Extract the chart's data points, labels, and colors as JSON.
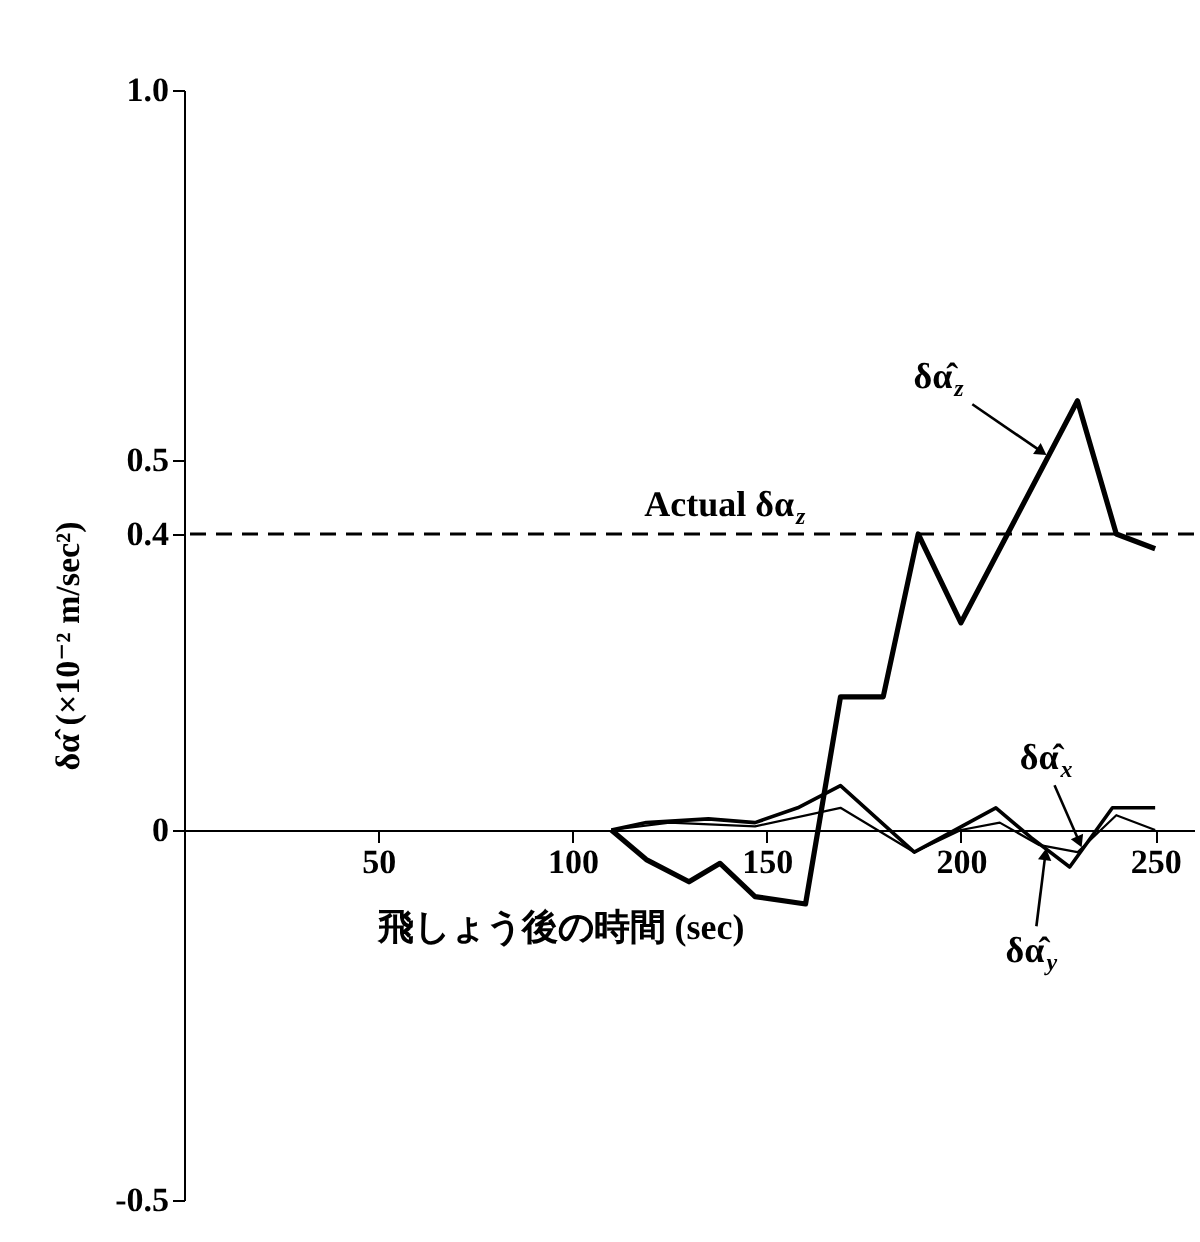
{
  "chart_data": {
    "type": "line",
    "xlabel": "飛しょう後の時間 (sec)",
    "ylabel": "δα̂  (×10⁻² m/sec²)",
    "xlim": [
      0,
      260
    ],
    "xticks": [
      50,
      100,
      150,
      200,
      250
    ],
    "ylim": [
      -0.5,
      1.0
    ],
    "yticks": [
      -0.5,
      0,
      0.4,
      0.5,
      {
        "value": 1.0,
        "label": "1.0"
      }
    ],
    "marker": "none",
    "line_style": "solid",
    "series": [
      {
        "name": "δα̂$_{z}$",
        "color": "#000000",
        "x": [
          110,
          119,
          130,
          138,
          147,
          160,
          169,
          180,
          189,
          200,
          230,
          240,
          250
        ],
        "values": [
          0,
          -0.04,
          -0.07,
          -0.045,
          -0.09,
          -0.1,
          0.18,
          0.18,
          0.4,
          0.28,
          0.58,
          0.4,
          0.38
        ]
      },
      {
        "name": "δα̂$_{x}$",
        "color": "#000000",
        "x": [
          110,
          119,
          135,
          147,
          158,
          169,
          188,
          209,
          218,
          228,
          239,
          250
        ],
        "values": [
          0,
          0.01,
          0.015,
          0.01,
          0.03,
          0.06,
          -0.03,
          0.03,
          -0.01,
          -0.05,
          0.03,
          0.03
        ]
      },
      {
        "name": "δα̂$_{y}$",
        "color": "#000000",
        "x": [
          110,
          125,
          147,
          169,
          188,
          200,
          210,
          220,
          230,
          240,
          250
        ],
        "values": [
          0,
          0.01,
          0.005,
          0.03,
          -0.03,
          0,
          0.01,
          -0.02,
          -0.03,
          0.02,
          0
        ]
      }
    ],
    "ref_lines": [
      {
        "axis": "y",
        "value": 0.4,
        "label": "Actual δα$_{z}$",
        "color": "#000000",
        "line_style": "dashed"
      }
    ]
  }
}
